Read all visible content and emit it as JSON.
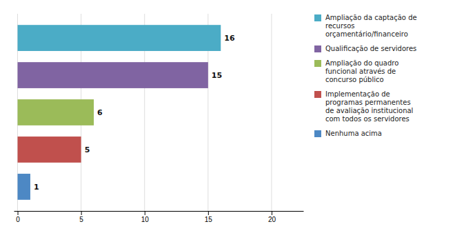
{
  "chart_data": {
    "type": "bar",
    "orientation": "horizontal",
    "categories": [
      "Nenhuma acima",
      "Implementação de\nprogramas permanentes\nde avaliação institucional\ncom todos os servidores",
      "Ampliação do quadro\nfuncional através de\nconcurso público",
      "Qualificação de servidores",
      "Ampliação da captação de\nrecursos\norçamentário/financeiro"
    ],
    "values": [
      1,
      5,
      6,
      15,
      16
    ],
    "colors": [
      "#4d88c4",
      "#c0504d",
      "#9bbb59",
      "#8064a2",
      "#4bacc6"
    ],
    "xlim": [
      -0.3,
      22.5
    ],
    "xticks": [
      0,
      5,
      10,
      15,
      20
    ],
    "grid": true,
    "data_labels": true,
    "tick_labels": "x",
    "legend": "right"
  }
}
